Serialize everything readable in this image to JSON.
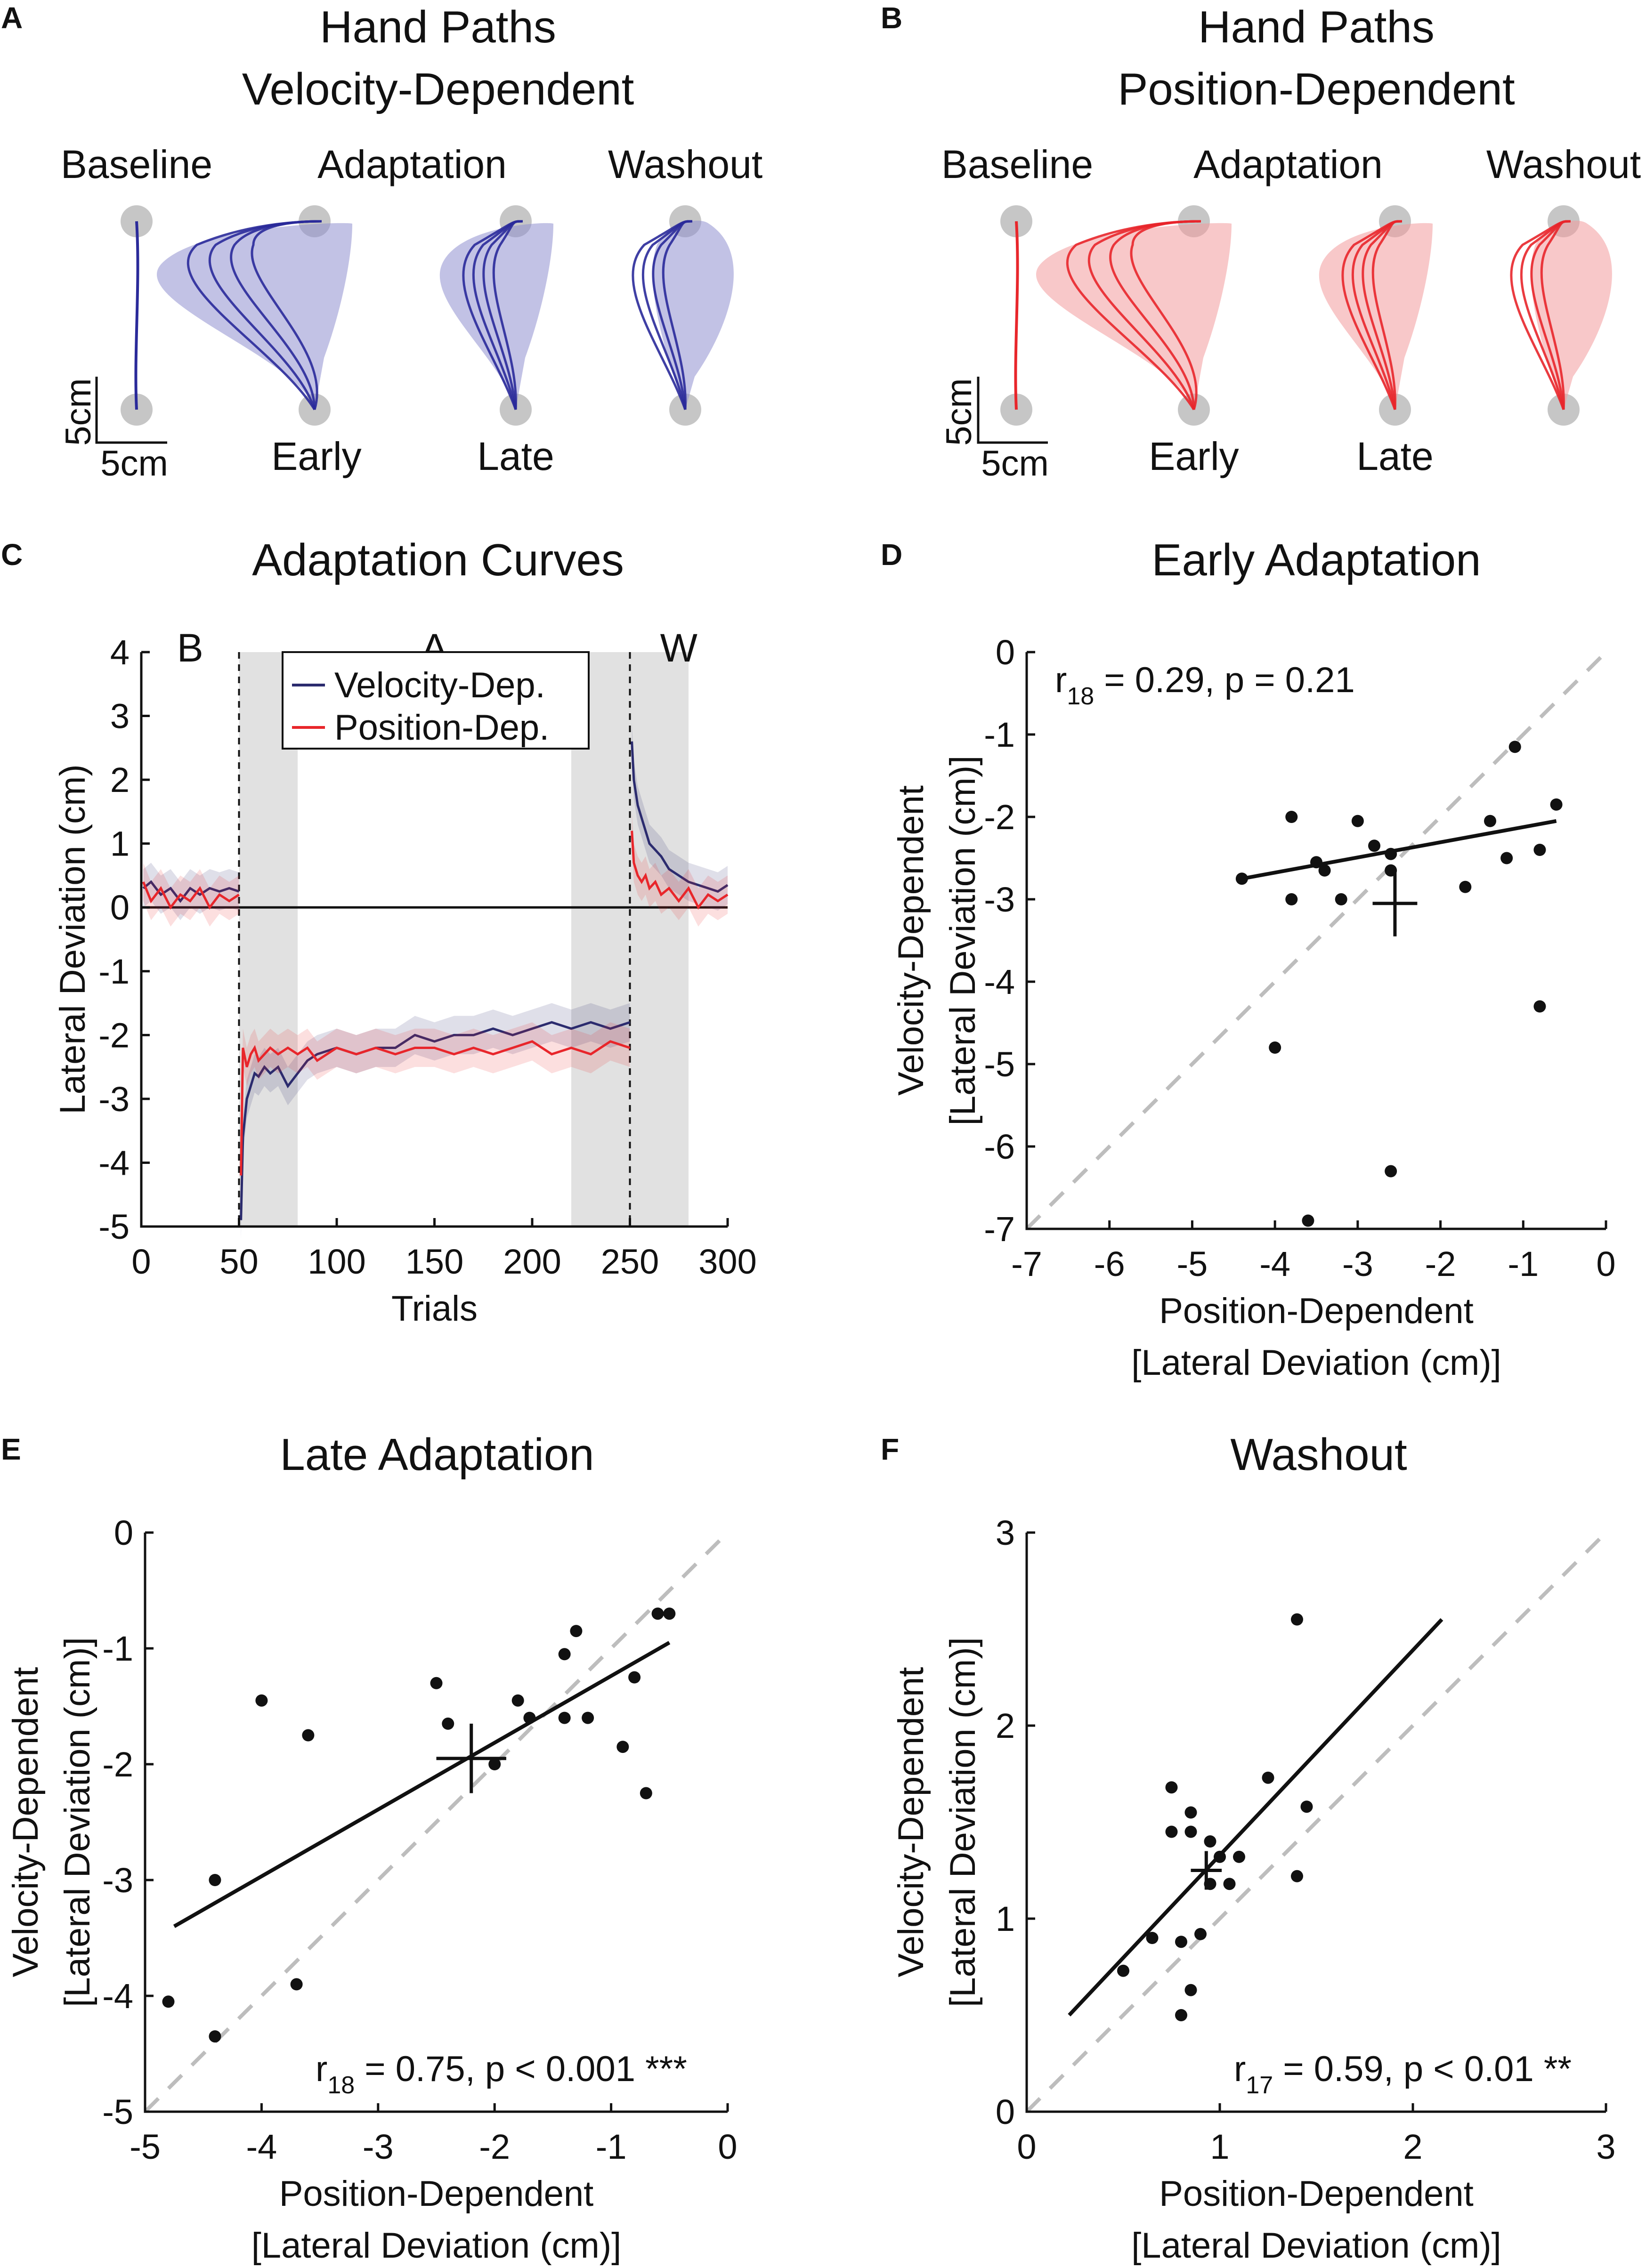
{
  "panels": {
    "A": {
      "label": "A",
      "title1": "Hand Paths",
      "title2": "Velocity-Dependent",
      "color": "#2a2a9a",
      "shade": "#8f8fd0"
    },
    "B": {
      "label": "B",
      "title1": "Hand Paths",
      "title2": "Position-Dependent",
      "color": "#e8262b",
      "shade": "#f29a9c"
    },
    "C": {
      "label": "C",
      "title": "Adaptation Curves"
    },
    "D": {
      "label": "D",
      "title": "Early Adaptation"
    },
    "E": {
      "label": "E",
      "title": "Late Adaptation"
    },
    "F": {
      "label": "F",
      "title": "Washout"
    }
  },
  "hand_paths": {
    "phase_top": [
      "Baseline",
      "Adaptation",
      "Washout"
    ],
    "phase_bottom": [
      "Early",
      "Late"
    ],
    "scale_y": "5cm",
    "scale_x": "5cm"
  },
  "chart_data": [
    {
      "panel": "C",
      "type": "line",
      "title": "Adaptation Curves",
      "xlabel": "Trials",
      "ylabel": "Lateral Deviation (cm)",
      "xlim": [
        0,
        300
      ],
      "ylim": [
        -5,
        4
      ],
      "xticks": [
        0,
        50,
        100,
        150,
        200,
        250,
        300
      ],
      "yticks": [
        4,
        3,
        2,
        1,
        0,
        -1,
        -2,
        -3,
        -4,
        -5
      ],
      "phase_labels": [
        {
          "text": "B",
          "x": 25
        },
        {
          "text": "A",
          "x": 150
        },
        {
          "text": "W",
          "x": 275
        }
      ],
      "phase_boundaries": [
        50,
        250
      ],
      "shaded_windows": [
        [
          50,
          80
        ],
        [
          220,
          280
        ]
      ],
      "series": [
        {
          "name": "Velocity-Dep.",
          "color": "#2b2b6e",
          "segments": [
            {
              "x": [
                1,
                5,
                10,
                15,
                20,
                25,
                30,
                35,
                40,
                45,
                50
              ],
              "y": [
                0.3,
                0.4,
                0.2,
                0.3,
                0.1,
                0.3,
                0.2,
                0.3,
                0.25,
                0.3,
                0.25
              ]
            },
            {
              "x": [
                51,
                52,
                54,
                56,
                58,
                60,
                63,
                66,
                70,
                75,
                80,
                85,
                90,
                100,
                110,
                120,
                130,
                140,
                150,
                160,
                170,
                180,
                190,
                200,
                210,
                220,
                230,
                240,
                250
              ],
              "y": [
                -4.9,
                -3.6,
                -3.0,
                -2.8,
                -2.6,
                -2.65,
                -2.5,
                -2.6,
                -2.5,
                -2.8,
                -2.6,
                -2.4,
                -2.3,
                -2.2,
                -2.3,
                -2.2,
                -2.2,
                -2.0,
                -2.1,
                -2.0,
                -2.0,
                -1.9,
                -2.0,
                -1.9,
                -1.8,
                -1.9,
                -1.8,
                -1.9,
                -1.8
              ]
            },
            {
              "x": [
                251,
                252,
                254,
                256,
                258,
                260,
                263,
                266,
                270,
                275,
                280,
                285,
                290,
                295,
                300
              ],
              "y": [
                2.6,
                2.0,
                1.6,
                1.4,
                1.2,
                1.0,
                0.9,
                0.8,
                0.6,
                0.5,
                0.4,
                0.35,
                0.3,
                0.25,
                0.35
              ]
            }
          ]
        },
        {
          "name": "Position-Dep.",
          "color": "#e8262b",
          "segments": [
            {
              "x": [
                1,
                5,
                10,
                15,
                20,
                25,
                30,
                35,
                40,
                45,
                50
              ],
              "y": [
                0.4,
                0.1,
                0.3,
                0.0,
                0.2,
                0.1,
                0.3,
                0.0,
                0.2,
                0.1,
                0.2
              ]
            },
            {
              "x": [
                51,
                52,
                54,
                56,
                58,
                60,
                63,
                66,
                70,
                75,
                80,
                85,
                90,
                100,
                110,
                120,
                130,
                140,
                150,
                160,
                170,
                180,
                190,
                200,
                210,
                220,
                230,
                240,
                250
              ],
              "y": [
                -4.2,
                -2.2,
                -2.5,
                -2.3,
                -2.2,
                -2.4,
                -2.3,
                -2.2,
                -2.3,
                -2.2,
                -2.3,
                -2.2,
                -2.4,
                -2.2,
                -2.3,
                -2.2,
                -2.3,
                -2.2,
                -2.2,
                -2.3,
                -2.2,
                -2.3,
                -2.2,
                -2.1,
                -2.3,
                -2.2,
                -2.3,
                -2.1,
                -2.2
              ]
            },
            {
              "x": [
                251,
                252,
                254,
                256,
                258,
                260,
                263,
                266,
                270,
                275,
                280,
                285,
                290,
                295,
                300
              ],
              "y": [
                1.2,
                0.7,
                0.5,
                0.4,
                0.5,
                0.3,
                0.4,
                0.2,
                0.3,
                0.1,
                0.3,
                0.0,
                0.2,
                0.1,
                0.2
              ]
            }
          ]
        }
      ]
    },
    {
      "panel": "D",
      "type": "scatter",
      "title": "Early Adaptation",
      "xlabel": "Position-Dependent",
      "xlabel2": "[Lateral Deviation (cm)]",
      "ylabel": "Velocity-Dependent",
      "ylabel2": "[Lateral Deviation (cm)]",
      "xlim": [
        -7,
        0
      ],
      "ylim": [
        -7,
        0
      ],
      "xticks": [
        -7,
        -6,
        -5,
        -4,
        -3,
        -2,
        -1,
        0
      ],
      "yticks": [
        0,
        -1,
        -2,
        -3,
        -4,
        -5,
        -6,
        -7
      ],
      "stat": {
        "r": "r",
        "sub": "18",
        "rest": " = 0.29, p = 0.21"
      },
      "points": [
        [
          -4.4,
          -2.75
        ],
        [
          -3.8,
          -2.0
        ],
        [
          -3.8,
          -3.0
        ],
        [
          -3.5,
          -2.55
        ],
        [
          -3.4,
          -2.65
        ],
        [
          -3.2,
          -3.0
        ],
        [
          -3.0,
          -2.05
        ],
        [
          -2.8,
          -2.35
        ],
        [
          -2.6,
          -2.45
        ],
        [
          -2.6,
          -2.65
        ],
        [
          -1.7,
          -2.85
        ],
        [
          -1.4,
          -2.05
        ],
        [
          -1.2,
          -2.5
        ],
        [
          -1.1,
          -1.15
        ],
        [
          -0.8,
          -2.4
        ],
        [
          -0.6,
          -1.85
        ],
        [
          -0.8,
          -4.3
        ],
        [
          -4.0,
          -4.8
        ],
        [
          -2.6,
          -6.3
        ],
        [
          -3.6,
          -6.9
        ]
      ],
      "fit": {
        "x": [
          -4.4,
          -0.6
        ],
        "y": [
          -2.75,
          -2.05
        ]
      },
      "mean": {
        "x": -2.55,
        "y": -3.05,
        "xerr": 0.27,
        "yerr": 0.4
      }
    },
    {
      "panel": "E",
      "type": "scatter",
      "title": "Late Adaptation",
      "xlabel": "Position-Dependent",
      "xlabel2": "[Lateral Deviation (cm)]",
      "ylabel": "Velocity-Dependent",
      "ylabel2": "[Lateral Deviation (cm)]",
      "xlim": [
        -5,
        0
      ],
      "ylim": [
        -5,
        0
      ],
      "xticks": [
        -5,
        -4,
        -3,
        -2,
        -1,
        0
      ],
      "yticks": [
        0,
        -1,
        -2,
        -3,
        -4,
        -5
      ],
      "stat": {
        "r": "r",
        "sub": "18",
        "rest": " = 0.75, p < 0.001 ***"
      },
      "points": [
        [
          -4.8,
          -4.05
        ],
        [
          -4.4,
          -4.35
        ],
        [
          -4.4,
          -3.0
        ],
        [
          -4.0,
          -1.45
        ],
        [
          -3.7,
          -3.9
        ],
        [
          -3.6,
          -1.75
        ],
        [
          -2.5,
          -1.3
        ],
        [
          -2.4,
          -1.65
        ],
        [
          -2.0,
          -2.0
        ],
        [
          -1.8,
          -1.45
        ],
        [
          -1.7,
          -1.6
        ],
        [
          -1.4,
          -1.05
        ],
        [
          -1.4,
          -1.6
        ],
        [
          -1.3,
          -0.85
        ],
        [
          -1.2,
          -1.6
        ],
        [
          -0.9,
          -1.85
        ],
        [
          -0.8,
          -1.25
        ],
        [
          -0.7,
          -2.25
        ],
        [
          -0.6,
          -0.7
        ],
        [
          -0.5,
          -0.7
        ]
      ],
      "fit": {
        "x": [
          -4.75,
          -0.5
        ],
        "y": [
          -3.4,
          -0.95
        ]
      },
      "mean": {
        "x": -2.2,
        "y": -1.95,
        "xerr": 0.3,
        "yerr": 0.3
      }
    },
    {
      "panel": "F",
      "type": "scatter",
      "title": "Washout",
      "xlabel": "Position-Dependent",
      "xlabel2": "[Lateral Deviation (cm)]",
      "ylabel": "Velocity-Dependent",
      "ylabel2": "[Lateral Deviation (cm)]",
      "xlim": [
        0,
        3
      ],
      "ylim": [
        0,
        3
      ],
      "xticks": [
        0,
        1,
        2,
        3
      ],
      "yticks": [
        3,
        2,
        1,
        0
      ],
      "stat": {
        "r": "r",
        "sub": "17",
        "rest": " = 0.59, p < 0.01 **"
      },
      "points": [
        [
          0.5,
          0.73
        ],
        [
          0.65,
          0.9
        ],
        [
          0.75,
          1.45
        ],
        [
          0.75,
          1.68
        ],
        [
          0.8,
          0.5
        ],
        [
          0.8,
          0.88
        ],
        [
          0.85,
          1.45
        ],
        [
          0.85,
          1.55
        ],
        [
          0.85,
          0.63
        ],
        [
          0.9,
          0.92
        ],
        [
          0.95,
          1.4
        ],
        [
          0.95,
          1.18
        ],
        [
          1.0,
          1.32
        ],
        [
          1.05,
          1.18
        ],
        [
          1.1,
          1.32
        ],
        [
          1.25,
          1.73
        ],
        [
          1.4,
          1.22
        ],
        [
          1.4,
          2.55
        ],
        [
          1.45,
          1.58
        ]
      ],
      "fit": {
        "x": [
          0.22,
          2.15
        ],
        "y": [
          0.5,
          2.55
        ]
      },
      "mean": {
        "x": 0.93,
        "y": 1.25,
        "xerr": 0.08,
        "yerr": 0.1
      }
    }
  ]
}
